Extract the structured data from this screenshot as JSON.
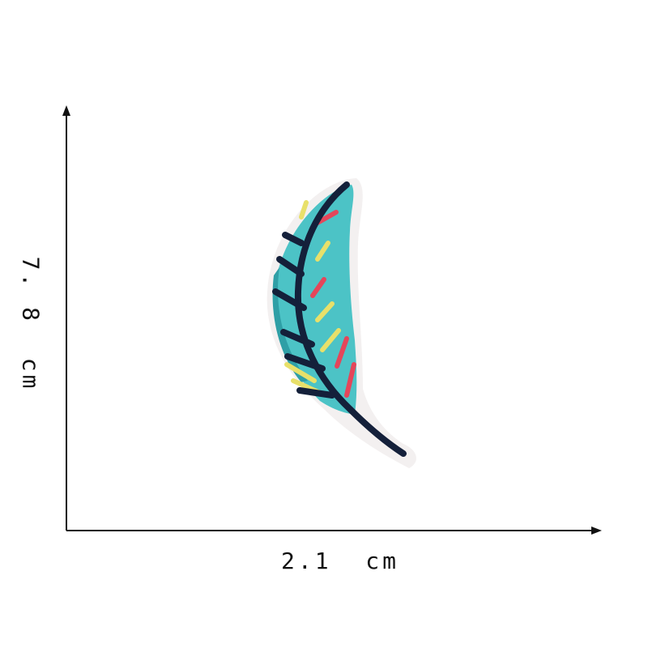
{
  "dimensions": {
    "width_label": "2.1  cm",
    "height_label": "7. 8  cm"
  },
  "product": {
    "image": "feather-patch-icon",
    "colors": {
      "backing": "#f3f0f0",
      "teal": "#4cc3c6",
      "teal_dark": "#2f9fa6",
      "navy": "#14203a",
      "yellow": "#e8e06a",
      "red": "#e4465a",
      "axis": "#111111"
    }
  }
}
